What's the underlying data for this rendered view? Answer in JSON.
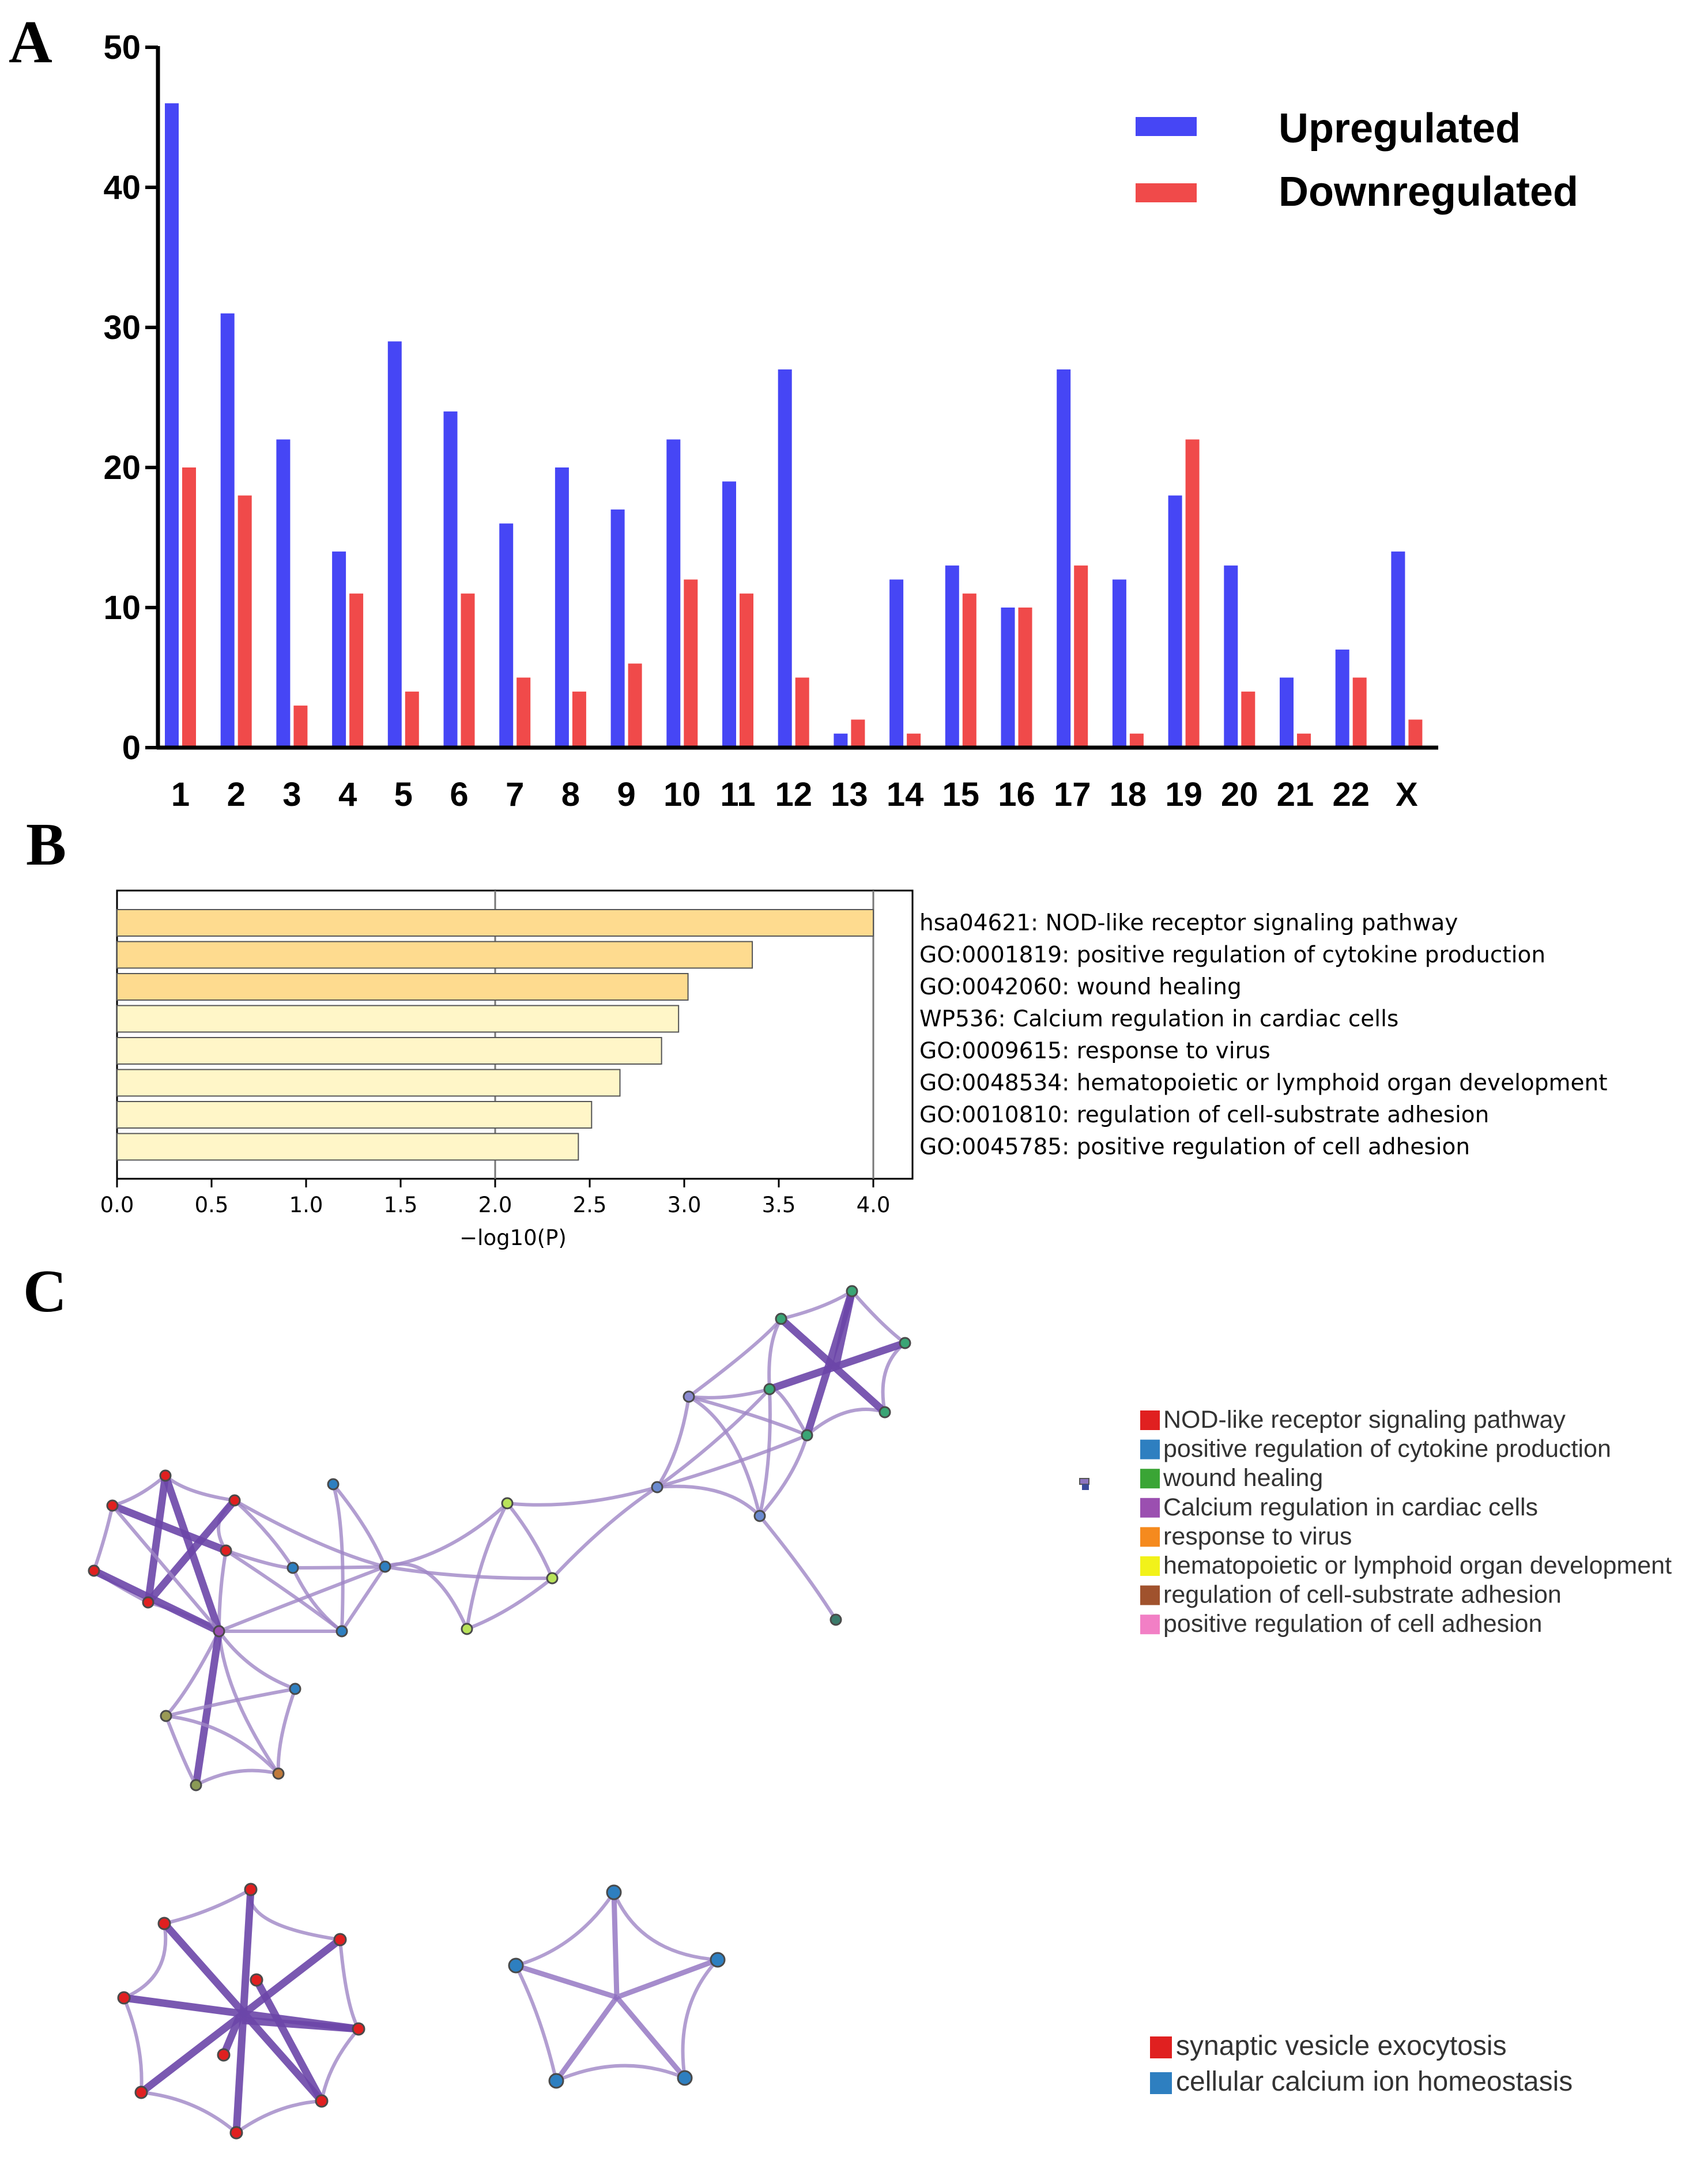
{
  "panels": {
    "a": "A",
    "b": "B",
    "c": "C"
  },
  "colors": {
    "upregulated": "#4646f5",
    "downregulated": "#f04a4a",
    "bar_dark": "#fedb8f",
    "bar_light": "#fff6c8"
  },
  "chart_data": [
    {
      "type": "bar",
      "title": "",
      "xlabel": "",
      "ylabel": "",
      "ylim": [
        0,
        50
      ],
      "yticks": [
        "0",
        "10",
        "20",
        "30",
        "40",
        "50"
      ],
      "categories": [
        "1",
        "2",
        "3",
        "4",
        "5",
        "6",
        "7",
        "8",
        "9",
        "10",
        "11",
        "12",
        "13",
        "14",
        "15",
        "16",
        "17",
        "18",
        "19",
        "20",
        "21",
        "22",
        "X"
      ],
      "series": [
        {
          "name": "Upregulated",
          "values": [
            46,
            31,
            22,
            14,
            29,
            24,
            16,
            20,
            17,
            22,
            19,
            27,
            1,
            12,
            13,
            10,
            27,
            12,
            18,
            13,
            5,
            7,
            14
          ]
        },
        {
          "name": "Downregulated",
          "values": [
            20,
            18,
            3,
            11,
            4,
            11,
            5,
            4,
            6,
            12,
            11,
            5,
            2,
            1,
            11,
            10,
            13,
            1,
            22,
            4,
            1,
            5,
            2
          ]
        }
      ],
      "legend": "top-right"
    },
    {
      "type": "bar",
      "orientation": "horizontal",
      "xlabel": "−log10(P)",
      "xlim": [
        0,
        4.2
      ],
      "xticks": [
        "0.0",
        "0.5",
        "1.0",
        "1.5",
        "2.0",
        "2.5",
        "3.0",
        "3.5",
        "4.0"
      ],
      "categories": [
        "hsa04621: NOD-like receptor signaling pathway",
        "GO:0001819: positive regulation of cytokine production",
        "GO:0042060: wound healing",
        "WP536: Calcium regulation in cardiac cells",
        "GO:0009615: response to virus",
        "GO:0048534: hematopoietic or lymphoid organ development",
        "GO:0010810: regulation of cell-substrate adhesion",
        "GO:0045785: positive regulation of cell adhesion"
      ],
      "values": [
        4.0,
        3.36,
        3.02,
        2.97,
        2.88,
        2.66,
        2.51,
        2.44
      ]
    }
  ],
  "network_legend": [
    {
      "label": "NOD-like receptor signaling pathway",
      "color": "#e02020"
    },
    {
      "label": "positive regulation of cytokine production",
      "color": "#2e7fc0"
    },
    {
      "label": "wound healing",
      "color": "#3aa535"
    },
    {
      "label": "Calcium regulation in cardiac cells",
      "color": "#9b4fb0"
    },
    {
      "label": "response to virus",
      "color": "#f58a1e"
    },
    {
      "label": "hematopoietic or lymphoid organ development",
      "color": "#f2f21a"
    },
    {
      "label": "regulation of cell-substrate adhesion",
      "color": "#a0522d"
    },
    {
      "label": "positive regulation of cell adhesion",
      "color": "#f27fc5"
    }
  ],
  "network_legend_2": [
    {
      "label": "synaptic vesicle exocytosis",
      "color": "#e02020"
    },
    {
      "label": "cellular calcium ion homeostasis",
      "color": "#2e7fc0"
    }
  ]
}
